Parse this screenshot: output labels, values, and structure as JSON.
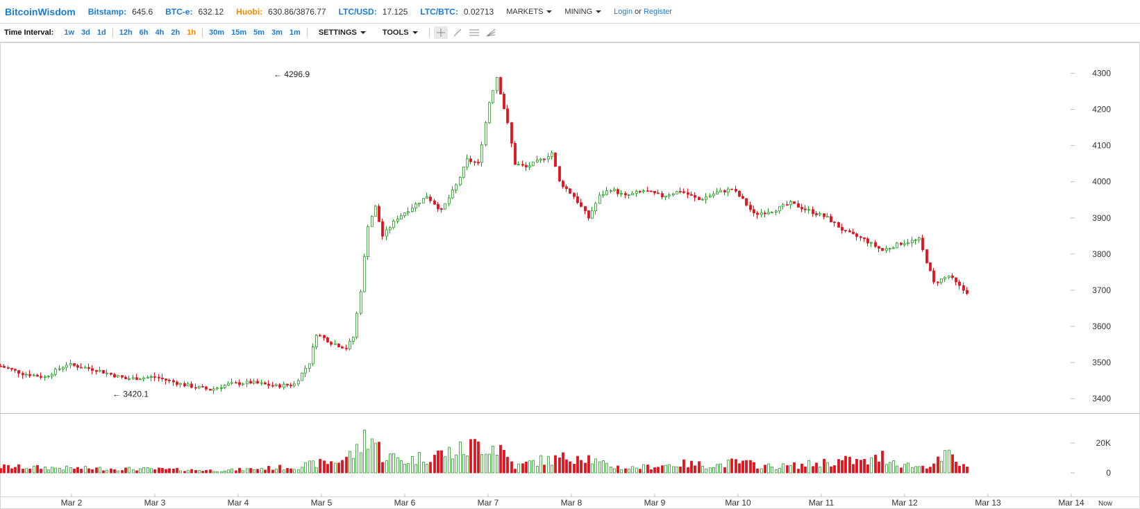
{
  "brand": "BitcoinWisdom",
  "tickers": [
    {
      "label": "Bitstamp:",
      "value": "645.6",
      "color": "#1a7bd6"
    },
    {
      "label": "BTC-e:",
      "value": "632.12",
      "color": "#1a7bd6"
    },
    {
      "label": "Huobi:",
      "value": "630.86/3876.77",
      "color": "#f18a00"
    },
    {
      "label": "LTC/USD:",
      "value": "17.125",
      "color": "#1a7bd6"
    },
    {
      "label": "LTC/BTC:",
      "value": "0.02713",
      "color": "#1a7bd6"
    }
  ],
  "menus": {
    "markets": "MARKETS",
    "mining": "MINING"
  },
  "auth": {
    "login": "Login",
    "or": "or",
    "register": "Register"
  },
  "toolbar": {
    "time_interval_label": "Time Interval:",
    "intervals": [
      "1w",
      "3d",
      "1d",
      "12h",
      "6h",
      "4h",
      "2h",
      "1h",
      "30m",
      "15m",
      "5m",
      "3m",
      "1m"
    ],
    "active_interval": "1h",
    "settings": "SETTINGS",
    "tools": "TOOLS",
    "tool_icons": [
      "crosshair-icon",
      "line-tool-icon",
      "horizontal-lines-icon",
      "fibonacci-fan-icon"
    ]
  },
  "colors": {
    "up": "#1f9e1f",
    "down": "#e0141e",
    "accent": "#1a7bd6",
    "active": "#f18a00"
  },
  "chart_data": {
    "type": "candlestick",
    "x_tick_labels": [
      "Mar 2",
      "Mar 3",
      "Mar 4",
      "Mar 5",
      "Mar 6",
      "Mar 7",
      "Mar 8",
      "Mar 9",
      "Mar 10",
      "Mar 11",
      "Mar 12",
      "Mar 13",
      "Mar 14",
      "Now"
    ],
    "y_tick_labels": [
      "4300",
      "4200",
      "4100",
      "4000",
      "3900",
      "3800",
      "3700",
      "3600",
      "3500",
      "3400"
    ],
    "ylim": [
      3360,
      4370
    ],
    "volume_tick_labels": [
      "20K",
      "0"
    ],
    "volume_ylim": [
      0,
      40000
    ],
    "max_annotation": {
      "label": "← 4296.9",
      "value": 4296.9
    },
    "min_annotation": {
      "label": "← 3420.1",
      "value": 3420.1
    },
    "candle_count": 264,
    "anchors": [
      [
        0,
        3490
      ],
      [
        6,
        3470
      ],
      [
        12,
        3460
      ],
      [
        18,
        3495
      ],
      [
        26,
        3480
      ],
      [
        34,
        3455
      ],
      [
        42,
        3460
      ],
      [
        50,
        3438
      ],
      [
        57,
        3425
      ],
      [
        62,
        3440
      ],
      [
        68,
        3445
      ],
      [
        75,
        3435
      ],
      [
        80,
        3440
      ],
      [
        84,
        3500
      ],
      [
        86,
        3580
      ],
      [
        90,
        3555
      ],
      [
        94,
        3540
      ],
      [
        96,
        3570
      ],
      [
        98,
        3700
      ],
      [
        100,
        3880
      ],
      [
        102,
        3930
      ],
      [
        104,
        3850
      ],
      [
        108,
        3900
      ],
      [
        112,
        3930
      ],
      [
        116,
        3960
      ],
      [
        120,
        3920
      ],
      [
        124,
        3990
      ],
      [
        127,
        4060
      ],
      [
        130,
        4050
      ],
      [
        133,
        4220
      ],
      [
        135,
        4290
      ],
      [
        138,
        4160
      ],
      [
        140,
        4050
      ],
      [
        143,
        4040
      ],
      [
        147,
        4060
      ],
      [
        150,
        4080
      ],
      [
        152,
        4000
      ],
      [
        156,
        3960
      ],
      [
        160,
        3900
      ],
      [
        163,
        3960
      ],
      [
        166,
        3980
      ],
      [
        170,
        3960
      ],
      [
        175,
        3975
      ],
      [
        180,
        3960
      ],
      [
        185,
        3975
      ],
      [
        190,
        3950
      ],
      [
        195,
        3970
      ],
      [
        199,
        3980
      ],
      [
        202,
        3950
      ],
      [
        205,
        3910
      ],
      [
        210,
        3920
      ],
      [
        215,
        3940
      ],
      [
        220,
        3920
      ],
      [
        225,
        3900
      ],
      [
        230,
        3860
      ],
      [
        235,
        3840
      ],
      [
        240,
        3810
      ],
      [
        245,
        3830
      ],
      [
        250,
        3840
      ],
      [
        254,
        3720
      ],
      [
        258,
        3740
      ],
      [
        262,
        3700
      ],
      [
        264,
        3690
      ]
    ],
    "volume_profile": [
      [
        0,
        4000
      ],
      [
        20,
        3000
      ],
      [
        40,
        2500
      ],
      [
        60,
        1500
      ],
      [
        80,
        4000
      ],
      [
        92,
        8000
      ],
      [
        97,
        14000
      ],
      [
        100,
        28000
      ],
      [
        104,
        12000
      ],
      [
        110,
        8000
      ],
      [
        118,
        12000
      ],
      [
        126,
        15000
      ],
      [
        131,
        20000
      ],
      [
        136,
        17000
      ],
      [
        140,
        4000
      ],
      [
        146,
        8000
      ],
      [
        152,
        9000
      ],
      [
        158,
        13000
      ],
      [
        163,
        6000
      ],
      [
        170,
        3000
      ],
      [
        176,
        4000
      ],
      [
        185,
        6000
      ],
      [
        195,
        5000
      ],
      [
        200,
        7000
      ],
      [
        210,
        4000
      ],
      [
        218,
        5000
      ],
      [
        224,
        7000
      ],
      [
        230,
        8000
      ],
      [
        236,
        7000
      ],
      [
        240,
        11000
      ],
      [
        245,
        6000
      ],
      [
        250,
        4000
      ],
      [
        254,
        6000
      ],
      [
        258,
        12000
      ],
      [
        262,
        4000
      ],
      [
        264,
        3000
      ]
    ]
  }
}
